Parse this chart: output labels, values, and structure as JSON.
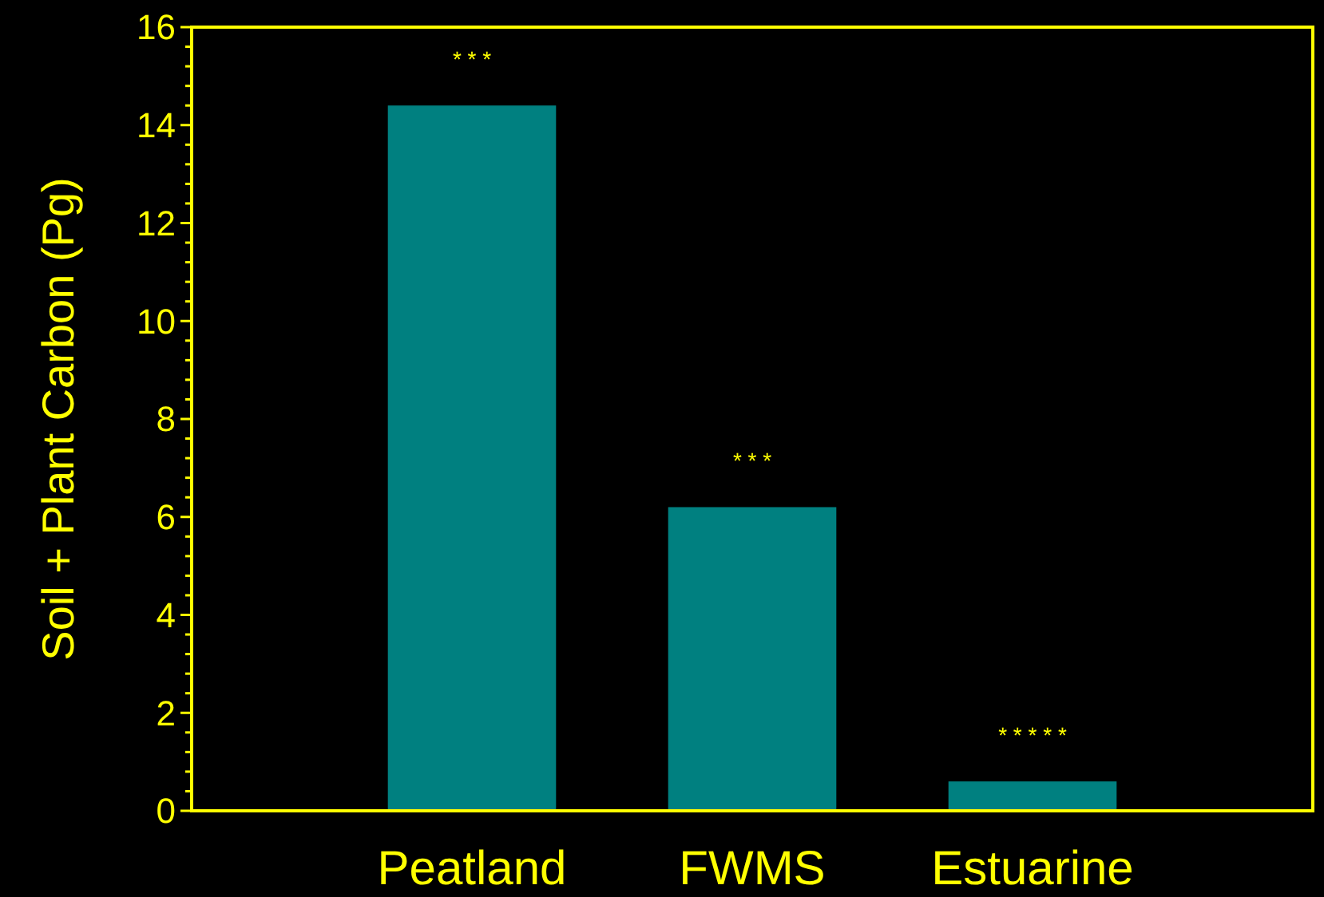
{
  "chart_data": {
    "type": "bar",
    "ylabel": "Soil + Plant Carbon (Pg)",
    "categories": [
      "Peatland",
      "FWMS",
      "Estuarine"
    ],
    "values": [
      14.4,
      6.2,
      0.6
    ],
    "color": "#008080",
    "ylim": [
      0,
      16
    ],
    "yticks": [
      0,
      {
        "value": 0.4,
        "label": null
      },
      {
        "value": 0.8,
        "label": null
      },
      {
        "value": 1.2,
        "label": null
      },
      {
        "value": 1.6,
        "label": null
      },
      2,
      {
        "value": 2.4,
        "label": null
      },
      {
        "value": 2.8,
        "label": null
      },
      {
        "value": 3.2,
        "label": null
      },
      {
        "value": 3.6,
        "label": null
      },
      4,
      {
        "value": 4.4,
        "label": null
      },
      {
        "value": 4.8,
        "label": null
      },
      {
        "value": 5.2,
        "label": null
      },
      {
        "value": 5.6,
        "label": null
      },
      6,
      {
        "value": 6.4,
        "label": null
      },
      {
        "value": 6.8,
        "label": null
      },
      {
        "value": 7.2,
        "label": null
      },
      {
        "value": 7.6,
        "label": null
      },
      8,
      {
        "value": 8.4,
        "label": null
      },
      {
        "value": 8.8,
        "label": null
      },
      {
        "value": 9.2,
        "label": null
      },
      {
        "value": 9.6,
        "label": null
      },
      10,
      {
        "value": 10.4,
        "label": null
      },
      {
        "value": 10.8,
        "label": null
      },
      {
        "value": 11.2,
        "label": null
      },
      {
        "value": 11.6,
        "label": null
      },
      12,
      {
        "value": 12.4,
        "label": null
      },
      {
        "value": 12.8,
        "label": null
      },
      {
        "value": 13.2,
        "label": null
      },
      {
        "value": 13.6,
        "label": null
      },
      14,
      {
        "value": 14.4,
        "label": null
      },
      {
        "value": 14.8,
        "label": null
      },
      {
        "value": 15.2,
        "label": null
      },
      {
        "value": 15.6,
        "label": null
      },
      16
    ],
    "value_labels": [
      "* * *",
      "* * *",
      "* * * * *"
    ],
    "grid": false
  }
}
